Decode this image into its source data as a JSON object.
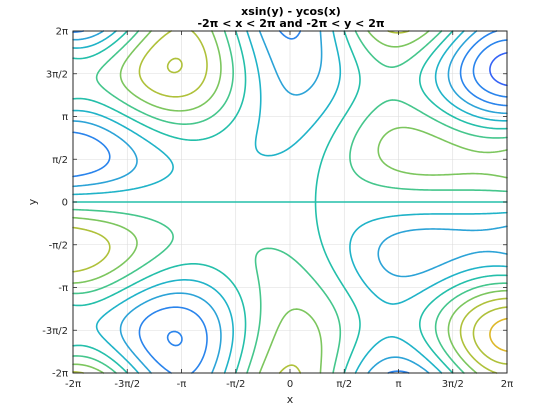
{
  "chart_data": {
    "type": "contour",
    "title": "xsin(y) - ycos(x)",
    "subtitle": "-2π < x < 2π and -2π < y < 2π",
    "xlabel": "x",
    "ylabel": "y",
    "function": "x*sin(y) - y*cos(x)",
    "xlim": [
      -6.2832,
      6.2832
    ],
    "ylim": [
      -6.2832,
      6.2832
    ],
    "grid": true,
    "levels": [
      -14,
      -12,
      -10,
      -8,
      -6,
      -4,
      -2,
      0,
      2,
      4,
      6,
      8,
      10,
      12,
      14
    ],
    "colormap": [
      "#3e26a8",
      "#4743e3",
      "#3563f6",
      "#2a84ec",
      "#2ca3d7",
      "#20b3c8",
      "#24bfaa",
      "#45c68c",
      "#7cc65e",
      "#afc13a",
      "#ddb82a",
      "#f9c62f",
      "#f6e51f"
    ],
    "x_ticks": [
      {
        "value": -6.2832,
        "label": "-2π"
      },
      {
        "value": -4.7124,
        "label": "-3π/2"
      },
      {
        "value": -3.1416,
        "label": "-π"
      },
      {
        "value": -1.5708,
        "label": "-π/2"
      },
      {
        "value": 0,
        "label": "0"
      },
      {
        "value": 1.5708,
        "label": "π/2"
      },
      {
        "value": 3.1416,
        "label": "π"
      },
      {
        "value": 4.7124,
        "label": "3π/2"
      },
      {
        "value": 6.2832,
        "label": "2π"
      }
    ],
    "y_ticks": [
      {
        "value": -6.2832,
        "label": "-2π"
      },
      {
        "value": -4.7124,
        "label": "-3π/2"
      },
      {
        "value": -3.1416,
        "label": "-π"
      },
      {
        "value": -1.5708,
        "label": "-π/2"
      },
      {
        "value": 0,
        "label": "0"
      },
      {
        "value": 1.5708,
        "label": "π/2"
      },
      {
        "value": 3.1416,
        "label": "π"
      },
      {
        "value": 4.7124,
        "label": "3π/2"
      },
      {
        "value": 6.2832,
        "label": "2π"
      }
    ]
  }
}
